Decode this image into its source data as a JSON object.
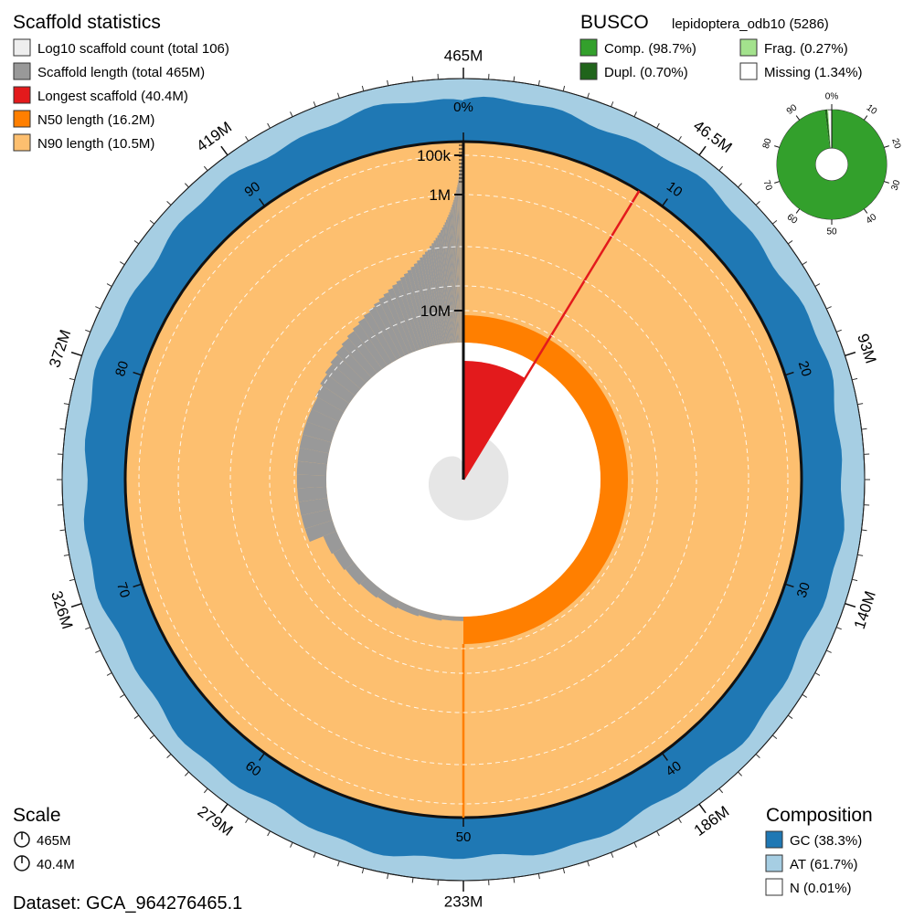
{
  "chart_data": {
    "type": "snail",
    "stats": {
      "title": "Scaffold statistics",
      "legend": [
        {
          "key": "count",
          "label": "Log10 scaffold count (total 106)",
          "color": "#eeeeee"
        },
        {
          "key": "length",
          "label": "Scaffold length (total 465M)",
          "color": "#999999"
        },
        {
          "key": "longest",
          "label": "Longest scaffold (40.4M)",
          "color": "#e31a1c"
        },
        {
          "key": "n50",
          "label": "N50 length (16.2M)",
          "color": "#ff7f00"
        },
        {
          "key": "n90",
          "label": "N90 length (10.5M)",
          "color": "#fdbf6f"
        }
      ],
      "total_span": 465,
      "longest": 40.4,
      "n50": 16.2,
      "n90": 10.5,
      "longest_pct": 8.7,
      "n50_pct": 50,
      "n90_pct": 90.5,
      "radial_scale_max": 40.4,
      "log_labels": [
        "100k",
        "1M",
        "10M"
      ],
      "outer_axis_labels": [
        "465M",
        "46.5M",
        "93M",
        "140M",
        "186M",
        "233M",
        "279M",
        "326M",
        "372M",
        "419M"
      ],
      "percent_ticks": [
        "0%",
        "10",
        "20",
        "30",
        "40",
        "50",
        "60",
        "70",
        "80",
        "90"
      ]
    },
    "busco": {
      "title": "BUSCO",
      "lineage": "lepidoptera_odb10 (5286)",
      "legend": [
        {
          "key": "comp",
          "label": "Comp. (98.7%)",
          "color": "#33a02c"
        },
        {
          "key": "frag",
          "label": "Frag. (0.27%)",
          "color": "#a3e28d"
        },
        {
          "key": "dupl",
          "label": "Dupl. (0.70%)",
          "color": "#20641b"
        },
        {
          "key": "missing",
          "label": "Missing (1.34%)",
          "color": "#ffffff"
        }
      ],
      "complete": 98.7,
      "duplicated": 0.7,
      "fragmented": 0.27,
      "missing": 1.34,
      "ticks": [
        "0%",
        "10",
        "20",
        "30",
        "40",
        "50",
        "60",
        "70",
        "80",
        "90"
      ]
    },
    "composition": {
      "title": "Composition",
      "legend": [
        {
          "key": "gc",
          "label": "GC (38.3%)",
          "color": "#1f78b4"
        },
        {
          "key": "at",
          "label": "AT (61.7%)",
          "color": "#a6cee3"
        },
        {
          "key": "n",
          "label": "N (0.01%)",
          "color": "#ffffff"
        }
      ],
      "gc": 38.3,
      "at": 61.7,
      "n": 0.01
    },
    "scale": {
      "title": "Scale",
      "items": [
        "465M",
        "40.4M"
      ]
    },
    "dataset": "Dataset: GCA_964276465.1"
  }
}
